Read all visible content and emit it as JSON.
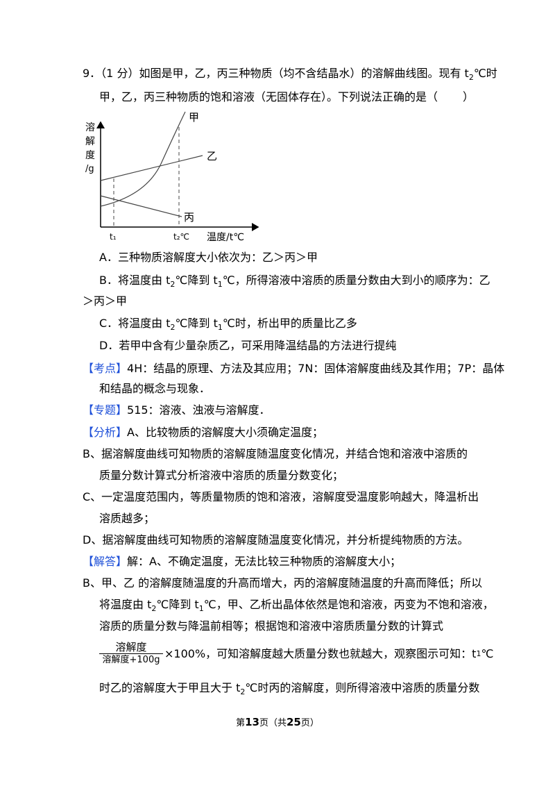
{
  "question": {
    "line1_pre": "9．（1 分）如图是甲，乙，丙三种物质（均不含结晶水）的溶解曲线图。现有 t",
    "line1_sub": "2",
    "line1_post": "℃时",
    "line2_pre": "甲，乙，丙三种物质的饱和溶液（无固体存在）。下列说法正确的是（",
    "line2_post": "）"
  },
  "graph": {
    "y_label_chars": [
      "溶",
      "解",
      "度",
      "/g"
    ],
    "curve_labels": {
      "jia": "甲",
      "yi": "乙",
      "bing": "丙"
    },
    "t1": "t₁",
    "t2": "t₂℃",
    "x_label": "温度/t℃"
  },
  "options": {
    "A": "A．三种物质溶解度大小依次为：乙＞丙＞甲",
    "B1_a": "B．将温度由 t",
    "B1_b": "2",
    "B1_c": "℃降到 t",
    "B1_d": "1",
    "B1_e": "℃，所得溶液中溶质的质量分数由大到小的顺序为：乙",
    "B2": "＞丙＞甲",
    "C_a": "C．将温度由 t",
    "C_b": "2",
    "C_c": "℃降到 t",
    "C_d": "1",
    "C_e": "℃时，析出甲的质量比乙多",
    "D": "D．若甲中含有少量杂质乙，可采用降温结晶的方法进行提纯"
  },
  "kaodian": {
    "tag": "【考点】",
    "line1": "4H：结晶的原理、方法及其应用；7N：固体溶解度曲线及其作用；7P：晶体",
    "line2": "和结晶的概念与现象．"
  },
  "zhuanti": {
    "tag": "【专题】",
    "text": "515：溶液、浊液与溶解度．"
  },
  "fenxi": {
    "tag": "【分析】",
    "A": "A、比较物质的溶解度大小须确定温度；",
    "B1": "B、据溶解度曲线可知物质的溶解度随温度变化情况，并结合饱和溶液中溶质的",
    "B2": "质量分数计算式分析溶液中溶质的质量分数变化；",
    "C1": "C、一定温度范围内，等质量物质的饱和溶液，溶解度受温度影响越大，降温析出",
    "C2": "溶质越多；",
    "D": "D、据溶解度曲线可知物质的溶解度随温度变化情况，并分析提纯物质的方法。"
  },
  "jieda": {
    "tag": "【解答】",
    "A": "解：A、不确定温度，无法比较三种物质的溶解度大小；",
    "B1": "B、甲、乙 的溶解度随温度的升高而增大，丙的溶解度随温度的升高而降低；所以",
    "B2_a": "将温度由 t",
    "B2_b": "2",
    "B2_c": "℃降到 t",
    "B2_d": "1",
    "B2_e": "℃，甲、乙析出晶体依然是饱和溶液，丙变为不饱和溶液，",
    "B3": "溶质的质量分数与降温前相等；根据饱和溶液中溶质质量分数的计算式",
    "frac_num": "溶解度",
    "frac_den": "溶解度+100g",
    "B4_a": "×100%，可知溶解度越大质量分数也就越大，观察图示可知：t",
    "B4_b": "1",
    "B4_c": "℃",
    "B5_a": "时乙的溶解度大于甲且大于 t",
    "B5_b": "2",
    "B5_c": "℃时丙的溶解度，则所得溶液中溶质的质量分数"
  },
  "footer": {
    "pre": "第",
    "page": "13",
    "mid": "页（共",
    "total": "25",
    "post": "页）"
  }
}
